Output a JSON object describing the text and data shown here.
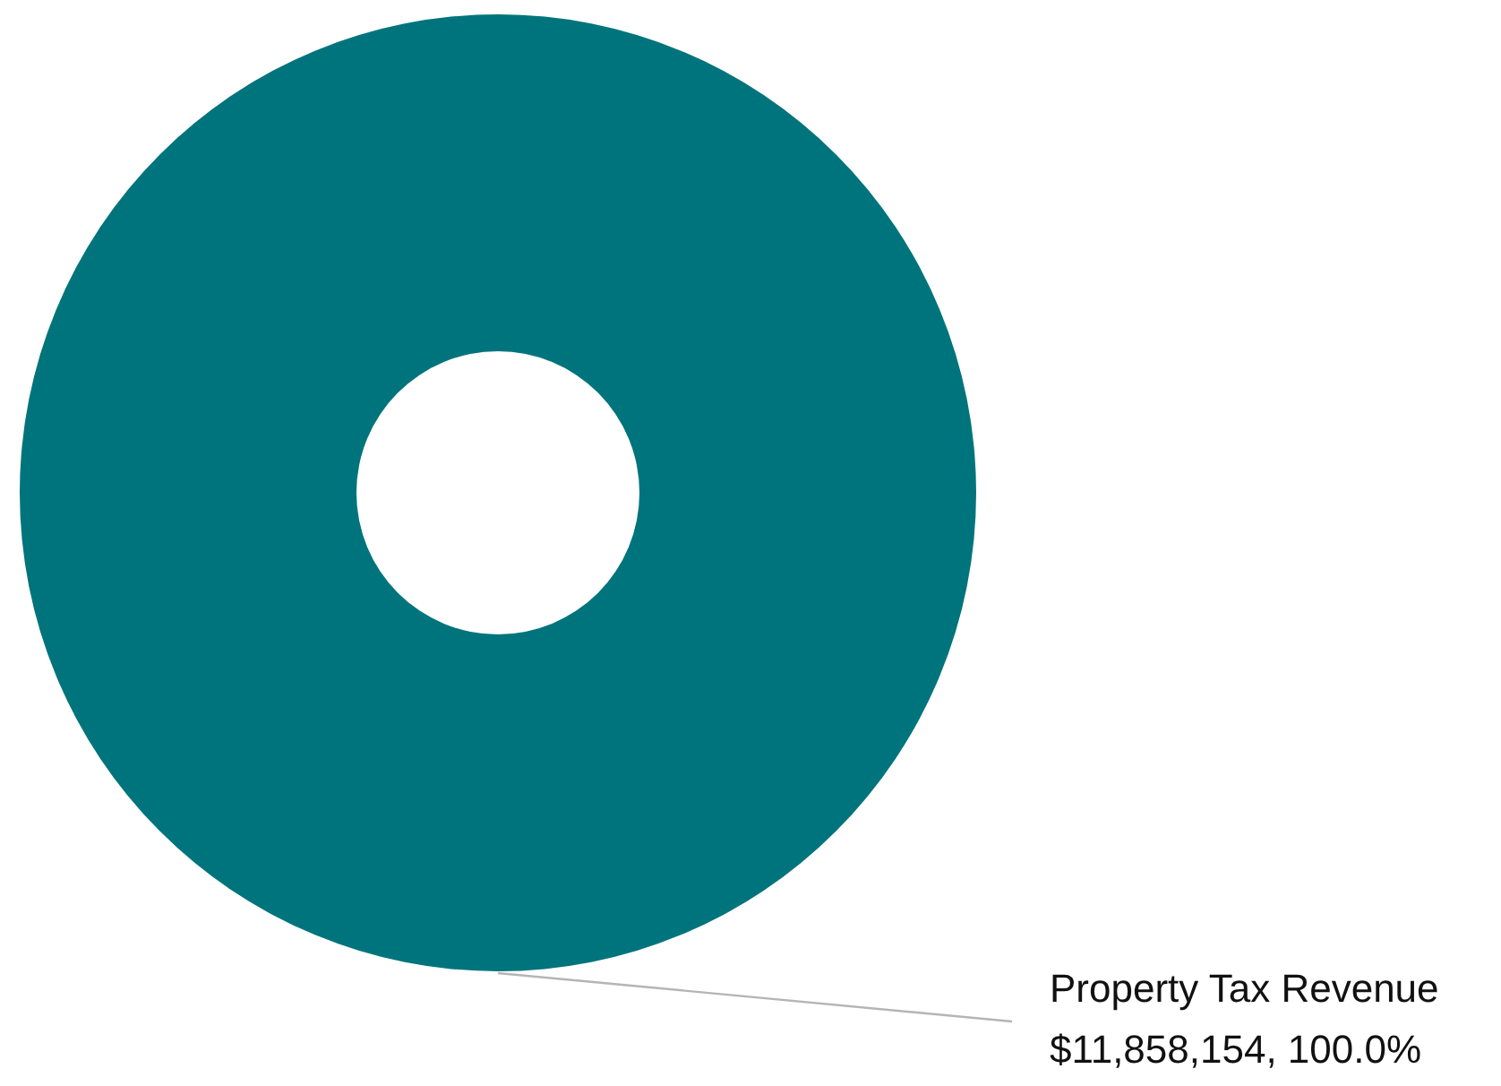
{
  "chart_data": {
    "type": "donut",
    "categories": [
      "Property Tax Revenue"
    ],
    "values": [
      100
    ],
    "colors": [
      "#00747c"
    ],
    "value_labels": [
      "$11,858,154, 100.0%"
    ]
  }
}
